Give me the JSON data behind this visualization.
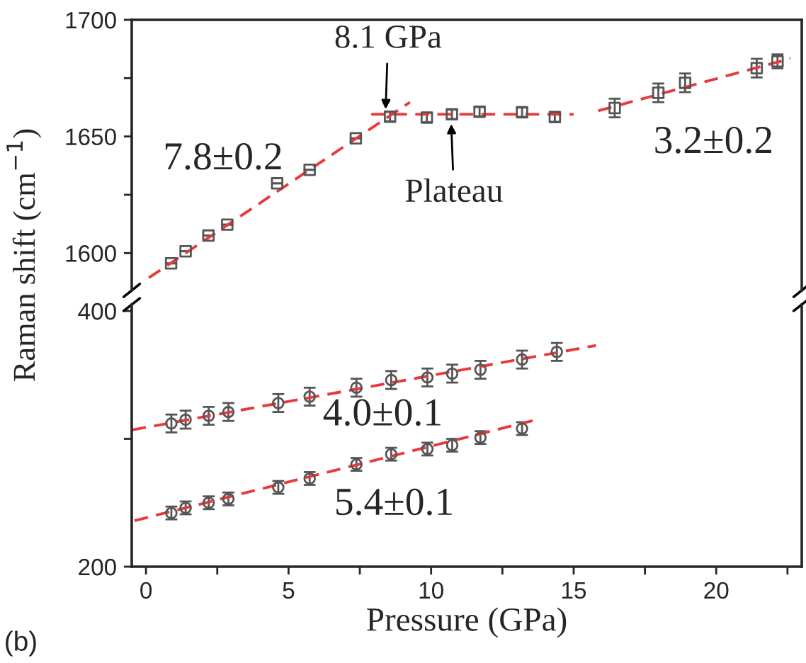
{
  "chart_data": [
    {
      "type": "scatter",
      "ylabel": "Raman shift (cm$^{−1}$)",
      "xlim": [
        -0.5,
        23
      ],
      "ylim": [
        1584,
        1700
      ],
      "yticks": [
        1600,
        {
          "value": 1625,
          "label": null
        },
        1650,
        {
          "value": 1675,
          "label": null
        },
        1700
      ],
      "tick_labels": "y",
      "marker": "square",
      "grid": false,
      "legend": false,
      "series": [
        {
          "color": "#555555",
          "x": [
            0.88,
            1.39,
            2.19,
            2.85,
            4.6,
            5.74,
            7.36,
            8.56,
            9.85,
            10.73,
            11.7,
            13.19,
            14.34,
            16.44,
            17.97,
            18.91,
            21.42,
            22.15
          ],
          "values": [
            1595.6,
            1600.8,
            1607.5,
            1612.2,
            1629.9,
            1635.7,
            1649.2,
            1658.5,
            1658.1,
            1659.5,
            1660.6,
            1660.4,
            1658.3,
            1662.2,
            1668.7,
            1673,
            1679.3,
            1682.2
          ],
          "errors": [
            null,
            null,
            null,
            null,
            null,
            null,
            null,
            2,
            2,
            2,
            2,
            2,
            2,
            4,
            4,
            4,
            4,
            3
          ]
        },
        {
          "type": "line",
          "color": "#e8393c",
          "line_style": "dashed",
          "marker": "none",
          "x": [
            0.1,
            9.26
          ],
          "values": [
            1589.4,
            1664.7
          ]
        },
        {
          "type": "line",
          "color": "#e8393c",
          "line_style": "dashed",
          "marker": "none",
          "x": [
            7.9,
            15.0
          ],
          "values": [
            1659.5,
            1659.5
          ]
        },
        {
          "type": "line",
          "color": "#e8393c",
          "line_style": "dashed",
          "marker": "none",
          "x": [
            15.86,
            22.6
          ],
          "values": [
            1661,
            1683.4
          ]
        }
      ],
      "annotations": [
        {
          "text": "8.1 GPa",
          "x": 8.4,
          "y": 1660
        },
        {
          "text": "Plateau",
          "x": 10.7,
          "y": 1657
        },
        "7.8±0.2",
        "3.2±0.2"
      ]
    },
    {
      "type": "scatter",
      "xlabel": "Pressure (GPa)",
      "xlim": [
        -0.5,
        23
      ],
      "ylim": [
        200,
        405
      ],
      "xticks": [
        0,
        {
          "value": 2.5,
          "label": null
        },
        5,
        {
          "value": 7.5,
          "label": null
        },
        10,
        {
          "value": 12.5,
          "label": null
        },
        15,
        {
          "value": 17.5,
          "label": null
        },
        20,
        {
          "value": 22.5,
          "label": null
        }
      ],
      "yticks": [
        200,
        {
          "value": 300,
          "label": null
        },
        400
      ],
      "marker": "circle",
      "grid": false,
      "legend": false,
      "series": [
        {
          "color": "#555555",
          "x": [
            0.89,
            1.39,
            2.2,
            2.89,
            4.64,
            5.74,
            7.38,
            8.6,
            9.87,
            10.74,
            11.73,
            13.19,
            14.41
          ],
          "values": [
            312,
            315,
            318,
            321,
            328,
            333,
            340,
            346,
            348,
            351,
            354,
            362,
            368
          ],
          "errors": [
            7,
            7,
            7,
            7,
            7,
            7,
            7,
            7,
            7,
            7,
            7,
            7,
            7
          ]
        },
        {
          "color": "#555555",
          "x": [
            0.89,
            1.39,
            2.2,
            2.89,
            4.64,
            5.74,
            7.38,
            8.6,
            9.87,
            10.74,
            11.73,
            13.19
          ],
          "values": [
            242,
            246,
            250,
            253,
            262,
            269,
            280,
            288,
            292,
            295,
            301,
            308
          ],
          "errors": [
            5,
            5,
            5,
            5,
            5,
            5,
            5,
            5,
            5,
            5,
            5,
            5
          ]
        },
        {
          "type": "line",
          "color": "#e8393c",
          "line_style": "dashed",
          "marker": "none",
          "x": [
            -0.48,
            15.78
          ],
          "values": [
            307,
            373
          ]
        },
        {
          "type": "line",
          "color": "#e8393c",
          "line_style": "dashed",
          "marker": "none",
          "x": [
            -0.4,
            13.7
          ],
          "values": [
            236,
            315
          ]
        }
      ],
      "annotations": [
        "4.0±0.1",
        "5.4±0.1",
        "(b)"
      ]
    }
  ]
}
